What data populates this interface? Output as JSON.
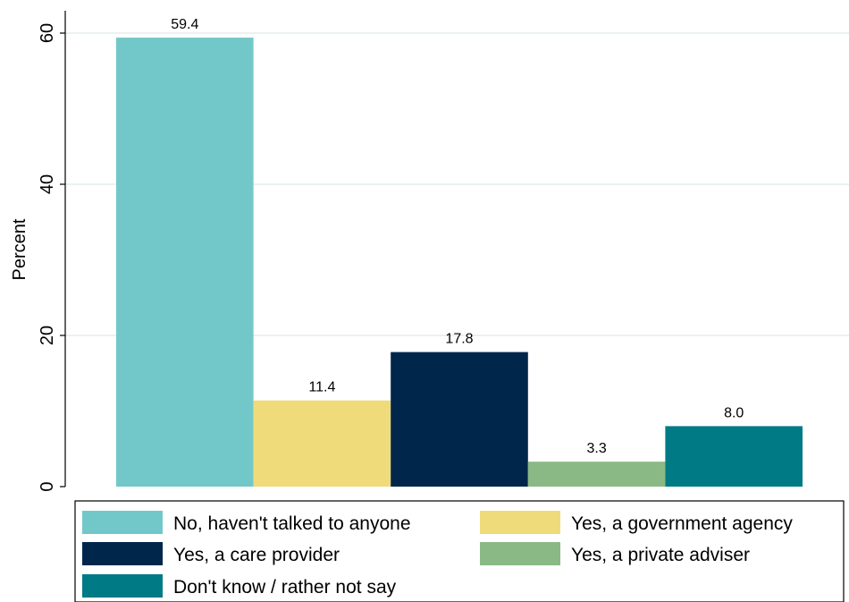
{
  "chart_data": {
    "type": "bar",
    "title": "",
    "xlabel": "",
    "ylabel": "Percent",
    "ylim": [
      0,
      60
    ],
    "yticks": [
      0,
      20,
      40,
      60
    ],
    "grid": true,
    "legend_position": "bottom",
    "value_labels": [
      "59.4",
      "11.4",
      "17.8",
      "3.3",
      "8.0"
    ],
    "series": [
      {
        "name": "No, haven't talked to anyone",
        "value": 59.4,
        "color": "#72c8c8"
      },
      {
        "name": "Yes, a government agency",
        "value": 11.4,
        "color": "#f0db7b"
      },
      {
        "name": "Yes, a care provider",
        "value": 17.8,
        "color": "#00264b"
      },
      {
        "name": "Yes, a private adviser",
        "value": 3.3,
        "color": "#8bb986"
      },
      {
        "name": "Don't know / rather not say",
        "value": 8.0,
        "color": "#007a84"
      }
    ]
  }
}
